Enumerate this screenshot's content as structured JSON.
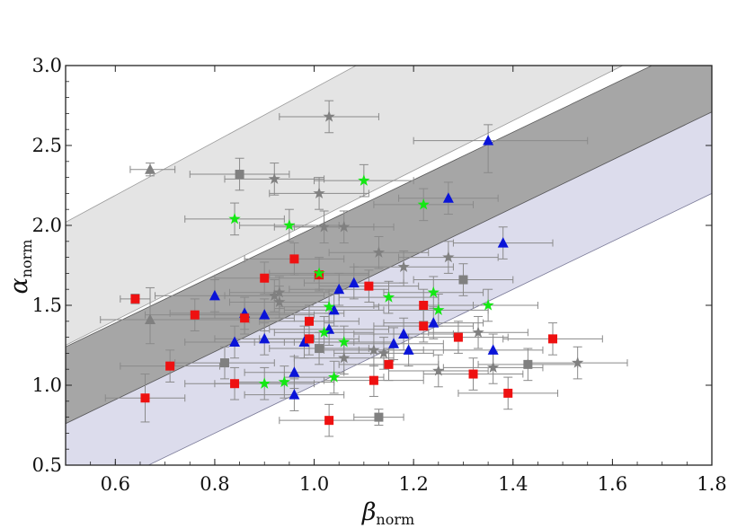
{
  "chart_data": {
    "type": "scatter",
    "title": "",
    "xlabel": {
      "symbol": "β",
      "subscript": "norm"
    },
    "ylabel": {
      "symbol": "α",
      "subscript": "norm"
    },
    "xlim": [
      0.5,
      1.8
    ],
    "ylim": [
      0.5,
      3.0
    ],
    "x_ticks": [
      0.6,
      0.8,
      1.0,
      1.2,
      1.4,
      1.6,
      1.8
    ],
    "y_ticks": [
      0.5,
      1.0,
      1.5,
      2.0,
      2.5,
      3.0
    ],
    "x_tick_labels": [
      "0.6",
      "0.8",
      "1.0",
      "1.2",
      "1.4",
      "1.6",
      "1.8"
    ],
    "y_tick_labels": [
      "0.5",
      "1.0",
      "1.5",
      "2.0",
      "2.5",
      "3.0"
    ],
    "grid": false,
    "bands": [
      {
        "name": "light-gray-band",
        "lower_at_xmin": 1.25,
        "lower_at_xmax": 3.28,
        "upper_at_xmin": 2.02,
        "upper_at_xmax": 4.2,
        "color": "#e4e4e4",
        "edge": "#9a9a9a"
      },
      {
        "name": "lavender-band",
        "lower_at_xmin": 0.25,
        "lower_at_xmax": 2.2,
        "upper_at_xmin": 0.76,
        "upper_at_xmax": 2.71,
        "color": "#dcdcec",
        "edge": "#7a7a98"
      },
      {
        "name": "dark-gray-band",
        "lower_at_xmin": 0.76,
        "lower_at_xmax": 2.71,
        "upper_at_xmin": 1.24,
        "upper_at_xmax": 3.18,
        "color": "#a6a6a6",
        "edge": "#5a5a5a"
      }
    ],
    "series": [
      {
        "marker": "triangle",
        "color": "#0a14d8",
        "points": [
          {
            "x": 0.67,
            "y": 1.41,
            "color": "#808080",
            "xerr": [
              0.1,
              0.2
            ],
            "yerr": [
              0.15,
              0.2
            ]
          },
          {
            "x": 0.67,
            "y": 2.35,
            "color": "#808080",
            "xerr": [
              0.04,
              0.05
            ],
            "yerr": [
              0.04,
              0.04
            ]
          },
          {
            "x": 0.8,
            "y": 1.56,
            "xerr": [
              0.12,
              0.12
            ],
            "yerr": [
              0.1,
              0.1
            ]
          },
          {
            "x": 0.84,
            "y": 1.27,
            "xerr": [
              0.1,
              0.1
            ],
            "yerr": [
              0.1,
              0.1
            ]
          },
          {
            "x": 0.86,
            "y": 1.45,
            "xerr": [
              0.15,
              0.2
            ],
            "yerr": [
              0.1,
              0.1
            ]
          },
          {
            "x": 0.9,
            "y": 1.44,
            "xerr": [
              0.1,
              0.1
            ],
            "yerr": [
              0.1,
              0.1
            ]
          },
          {
            "x": 0.9,
            "y": 1.29,
            "xerr": [
              0.1,
              0.1
            ],
            "yerr": [
              0.1,
              0.1
            ]
          },
          {
            "x": 0.96,
            "y": 1.08,
            "xerr": [
              0.1,
              0.1
            ],
            "yerr": [
              0.1,
              0.1
            ]
          },
          {
            "x": 0.96,
            "y": 0.94,
            "xerr": [
              0.1,
              0.1
            ],
            "yerr": [
              0.1,
              0.1
            ]
          },
          {
            "x": 0.98,
            "y": 1.27,
            "xerr": [
              0.1,
              0.1
            ],
            "yerr": [
              0.1,
              0.1
            ]
          },
          {
            "x": 1.03,
            "y": 1.35,
            "xerr": [
              0.12,
              0.12
            ],
            "yerr": [
              0.1,
              0.1
            ]
          },
          {
            "x": 1.04,
            "y": 1.47,
            "xerr": [
              0.1,
              0.1
            ],
            "yerr": [
              0.1,
              0.1
            ]
          },
          {
            "x": 1.05,
            "y": 1.6,
            "xerr": [
              0.1,
              0.1
            ],
            "yerr": [
              0.1,
              0.1
            ]
          },
          {
            "x": 1.08,
            "y": 1.64,
            "xerr": [
              0.1,
              0.1
            ],
            "yerr": [
              0.1,
              0.1
            ]
          },
          {
            "x": 1.16,
            "y": 1.26,
            "xerr": [
              0.1,
              0.1
            ],
            "yerr": [
              0.1,
              0.1
            ]
          },
          {
            "x": 1.18,
            "y": 1.32,
            "xerr": [
              0.1,
              0.1
            ],
            "yerr": [
              0.1,
              0.1
            ]
          },
          {
            "x": 1.19,
            "y": 1.22,
            "xerr": [
              0.1,
              0.1
            ],
            "yerr": [
              0.1,
              0.1
            ]
          },
          {
            "x": 1.24,
            "y": 1.39,
            "xerr": [
              0.1,
              0.1
            ],
            "yerr": [
              0.1,
              0.1
            ]
          },
          {
            "x": 1.27,
            "y": 2.17,
            "xerr": [
              0.1,
              0.1
            ],
            "yerr": [
              0.1,
              0.1
            ]
          },
          {
            "x": 1.35,
            "y": 2.53,
            "xerr": [
              0.15,
              0.2
            ],
            "yerr": [
              0.2,
              0.1
            ]
          },
          {
            "x": 1.36,
            "y": 1.22,
            "xerr": [
              0.1,
              0.1
            ],
            "yerr": [
              0.1,
              0.1
            ]
          },
          {
            "x": 1.38,
            "y": 1.89,
            "xerr": [
              0.1,
              0.1
            ],
            "yerr": [
              0.1,
              0.1
            ]
          }
        ]
      },
      {
        "marker": "square",
        "color": "#ee1111",
        "points": [
          {
            "x": 0.64,
            "y": 1.54,
            "xerr": [
              0.03,
              0.03
            ],
            "yerr": [
              0.03,
              0.03
            ]
          },
          {
            "x": 0.66,
            "y": 0.92,
            "xerr": [
              0.08,
              0.08
            ],
            "yerr": [
              0.15,
              0.15
            ]
          },
          {
            "x": 0.71,
            "y": 1.12,
            "xerr": [
              0.1,
              0.1
            ],
            "yerr": [
              0.1,
              0.1
            ]
          },
          {
            "x": 0.76,
            "y": 1.44,
            "xerr": [
              0.1,
              0.1
            ],
            "yerr": [
              0.1,
              0.1
            ]
          },
          {
            "x": 0.82,
            "y": 1.14,
            "color": "#808080",
            "xerr": [
              0.1,
              0.1
            ],
            "yerr": [
              0.1,
              0.1
            ]
          },
          {
            "x": 0.84,
            "y": 1.01,
            "xerr": [
              0.1,
              0.1
            ],
            "yerr": [
              0.1,
              0.1
            ]
          },
          {
            "x": 0.85,
            "y": 2.32,
            "color": "#808080",
            "xerr": [
              0.1,
              0.1
            ],
            "yerr": [
              0.1,
              0.1
            ]
          },
          {
            "x": 0.86,
            "y": 1.42,
            "xerr": [
              0.1,
              0.1
            ],
            "yerr": [
              0.1,
              0.1
            ]
          },
          {
            "x": 0.9,
            "y": 1.67,
            "xerr": [
              0.1,
              0.1
            ],
            "yerr": [
              0.1,
              0.1
            ]
          },
          {
            "x": 0.96,
            "y": 1.79,
            "xerr": [
              0.1,
              0.1
            ],
            "yerr": [
              0.1,
              0.1
            ]
          },
          {
            "x": 0.99,
            "y": 1.29,
            "xerr": [
              0.1,
              0.1
            ],
            "yerr": [
              0.1,
              0.1
            ]
          },
          {
            "x": 0.99,
            "y": 1.4,
            "xerr": [
              0.1,
              0.1
            ],
            "yerr": [
              0.1,
              0.1
            ]
          },
          {
            "x": 1.01,
            "y": 1.23,
            "color": "#808080",
            "xerr": [
              0.1,
              0.1
            ],
            "yerr": [
              0.1,
              0.1
            ]
          },
          {
            "x": 1.01,
            "y": 1.69,
            "xerr": [
              0.1,
              0.1
            ],
            "yerr": [
              0.1,
              0.1
            ]
          },
          {
            "x": 1.03,
            "y": 0.78,
            "xerr": [
              0.1,
              0.1
            ],
            "yerr": [
              0.1,
              0.1
            ]
          },
          {
            "x": 1.11,
            "y": 1.62,
            "xerr": [
              0.1,
              0.1
            ],
            "yerr": [
              0.1,
              0.1
            ]
          },
          {
            "x": 1.12,
            "y": 1.03,
            "xerr": [
              0.1,
              0.1
            ],
            "yerr": [
              0.1,
              0.1
            ]
          },
          {
            "x": 1.13,
            "y": 0.8,
            "color": "#808080",
            "xerr": [
              0.05,
              0.05
            ],
            "yerr": [
              0.05,
              0.05
            ]
          },
          {
            "x": 1.15,
            "y": 1.13,
            "xerr": [
              0.1,
              0.1
            ],
            "yerr": [
              0.1,
              0.1
            ]
          },
          {
            "x": 1.22,
            "y": 1.5,
            "xerr": [
              0.1,
              0.1
            ],
            "yerr": [
              0.1,
              0.1
            ]
          },
          {
            "x": 1.22,
            "y": 1.37,
            "xerr": [
              0.1,
              0.1
            ],
            "yerr": [
              0.1,
              0.1
            ]
          },
          {
            "x": 1.29,
            "y": 1.3,
            "xerr": [
              0.1,
              0.1
            ],
            "yerr": [
              0.1,
              0.1
            ]
          },
          {
            "x": 1.3,
            "y": 1.66,
            "color": "#808080",
            "xerr": [
              0.1,
              0.1
            ],
            "yerr": [
              0.1,
              0.1
            ]
          },
          {
            "x": 1.32,
            "y": 1.07,
            "xerr": [
              0.1,
              0.1
            ],
            "yerr": [
              0.1,
              0.1
            ]
          },
          {
            "x": 1.39,
            "y": 0.95,
            "xerr": [
              0.1,
              0.1
            ],
            "yerr": [
              0.1,
              0.1
            ]
          },
          {
            "x": 1.43,
            "y": 1.13,
            "color": "#808080",
            "xerr": [
              0.1,
              0.1
            ],
            "yerr": [
              0.1,
              0.1
            ]
          },
          {
            "x": 1.48,
            "y": 1.29,
            "xerr": [
              0.1,
              0.1
            ],
            "yerr": [
              0.1,
              0.1
            ]
          }
        ]
      },
      {
        "marker": "star",
        "color": "#14e814",
        "points": [
          {
            "x": 0.84,
            "y": 2.04,
            "xerr": [
              0.1,
              0.1
            ],
            "yerr": [
              0.1,
              0.1
            ]
          },
          {
            "x": 0.9,
            "y": 1.01,
            "xerr": [
              0.1,
              0.1
            ],
            "yerr": [
              0.1,
              0.1
            ]
          },
          {
            "x": 0.94,
            "y": 1.02,
            "xerr": [
              0.1,
              0.1
            ],
            "yerr": [
              0.1,
              0.1
            ]
          },
          {
            "x": 0.95,
            "y": 2.0,
            "xerr": [
              0.1,
              0.1
            ],
            "yerr": [
              0.1,
              0.1
            ]
          },
          {
            "x": 1.01,
            "y": 1.7,
            "xerr": [
              0.1,
              0.1
            ],
            "yerr": [
              0.1,
              0.1
            ]
          },
          {
            "x": 1.02,
            "y": 1.33,
            "xerr": [
              0.1,
              0.1
            ],
            "yerr": [
              0.1,
              0.1
            ]
          },
          {
            "x": 1.03,
            "y": 1.49,
            "xerr": [
              0.1,
              0.1
            ],
            "yerr": [
              0.1,
              0.1
            ]
          },
          {
            "x": 1.04,
            "y": 1.05,
            "xerr": [
              0.1,
              0.1
            ],
            "yerr": [
              0.1,
              0.1
            ]
          },
          {
            "x": 1.06,
            "y": 1.27,
            "xerr": [
              0.1,
              0.1
            ],
            "yerr": [
              0.1,
              0.1
            ]
          },
          {
            "x": 1.1,
            "y": 2.28,
            "xerr": [
              0.1,
              0.1
            ],
            "yerr": [
              0.1,
              0.1
            ]
          },
          {
            "x": 1.15,
            "y": 1.55,
            "xerr": [
              0.1,
              0.1
            ],
            "yerr": [
              0.1,
              0.1
            ]
          },
          {
            "x": 1.22,
            "y": 2.13,
            "xerr": [
              0.1,
              0.1
            ],
            "yerr": [
              0.1,
              0.1
            ]
          },
          {
            "x": 1.24,
            "y": 1.58,
            "xerr": [
              0.1,
              0.1
            ],
            "yerr": [
              0.1,
              0.1
            ]
          },
          {
            "x": 1.25,
            "y": 1.47,
            "xerr": [
              0.1,
              0.1
            ],
            "yerr": [
              0.1,
              0.1
            ]
          },
          {
            "x": 1.35,
            "y": 1.5,
            "xerr": [
              0.1,
              0.1
            ],
            "yerr": [
              0.1,
              0.1
            ]
          }
        ]
      },
      {
        "marker": "star",
        "color": "#808080",
        "points": [
          {
            "x": 0.92,
            "y": 2.29,
            "xerr": [
              0.1,
              0.1
            ],
            "yerr": [
              0.1,
              0.1
            ]
          },
          {
            "x": 0.92,
            "y": 1.56,
            "xerr": [
              0.1,
              0.1
            ],
            "yerr": [
              0.1,
              0.1
            ]
          },
          {
            "x": 0.93,
            "y": 1.58,
            "xerr": [
              0.1,
              0.1
            ],
            "yerr": [
              0.1,
              0.1
            ]
          },
          {
            "x": 0.93,
            "y": 1.52,
            "xerr": [
              0.1,
              0.1
            ],
            "yerr": [
              0.1,
              0.1
            ]
          },
          {
            "x": 1.01,
            "y": 2.2,
            "xerr": [
              0.1,
              0.1
            ],
            "yerr": [
              0.1,
              0.1
            ]
          },
          {
            "x": 1.02,
            "y": 1.99,
            "xerr": [
              0.1,
              0.1
            ],
            "yerr": [
              0.1,
              0.1
            ]
          },
          {
            "x": 1.03,
            "y": 2.68,
            "xerr": [
              0.1,
              0.1
            ],
            "yerr": [
              0.1,
              0.1
            ]
          },
          {
            "x": 1.06,
            "y": 1.99,
            "xerr": [
              0.1,
              0.1
            ],
            "yerr": [
              0.1,
              0.1
            ]
          },
          {
            "x": 1.06,
            "y": 1.17,
            "xerr": [
              0.1,
              0.1
            ],
            "yerr": [
              0.1,
              0.1
            ]
          },
          {
            "x": 1.12,
            "y": 1.22,
            "xerr": [
              0.1,
              0.1
            ],
            "yerr": [
              0.1,
              0.1
            ]
          },
          {
            "x": 1.13,
            "y": 1.83,
            "xerr": [
              0.1,
              0.1
            ],
            "yerr": [
              0.1,
              0.1
            ]
          },
          {
            "x": 1.14,
            "y": 1.2,
            "xerr": [
              0.1,
              0.1
            ],
            "yerr": [
              0.1,
              0.1
            ]
          },
          {
            "x": 1.18,
            "y": 1.74,
            "xerr": [
              0.1,
              0.1
            ],
            "yerr": [
              0.1,
              0.1
            ]
          },
          {
            "x": 1.25,
            "y": 1.09,
            "xerr": [
              0.1,
              0.1
            ],
            "yerr": [
              0.1,
              0.1
            ]
          },
          {
            "x": 1.27,
            "y": 1.8,
            "xerr": [
              0.1,
              0.1
            ],
            "yerr": [
              0.1,
              0.1
            ]
          },
          {
            "x": 1.33,
            "y": 1.33,
            "xerr": [
              0.1,
              0.1
            ],
            "yerr": [
              0.1,
              0.1
            ]
          },
          {
            "x": 1.36,
            "y": 1.11,
            "xerr": [
              0.1,
              0.1
            ],
            "yerr": [
              0.1,
              0.1
            ]
          },
          {
            "x": 1.53,
            "y": 1.14,
            "xerr": [
              0.1,
              0.1
            ],
            "yerr": [
              0.1,
              0.1
            ]
          }
        ]
      }
    ]
  }
}
